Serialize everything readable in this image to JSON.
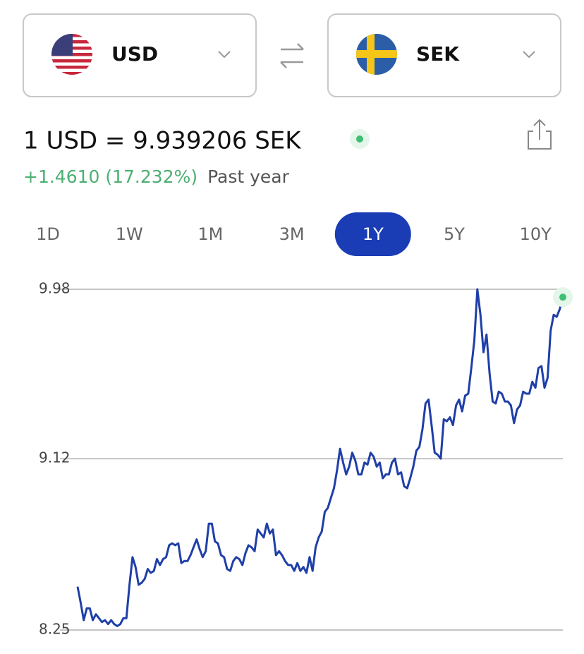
{
  "from_currency": "USD",
  "to_currency": "SEK",
  "rate": "1 USD = 9.939206 SEK",
  "change": "+1.4610 (17.232%)",
  "period": "Past year",
  "ranges": [
    "1D",
    "1W",
    "1M",
    "3M",
    "1Y",
    "5Y",
    "10Y"
  ],
  "selected_range": 4,
  "chart_data": {
    "type": "line",
    "color": "#1f3fa8",
    "end_color": "#3fbf74",
    "grid": true,
    "ylim": [
      8.25,
      9.98
    ],
    "yticks": [
      8.25,
      9.12,
      9.98
    ],
    "values": [
      8.47,
      8.39,
      8.3,
      8.36,
      8.36,
      8.3,
      8.33,
      8.31,
      8.29,
      8.3,
      8.28,
      8.3,
      8.28,
      8.27,
      8.28,
      8.31,
      8.31,
      8.48,
      8.62,
      8.57,
      8.48,
      8.49,
      8.51,
      8.56,
      8.54,
      8.55,
      8.61,
      8.58,
      8.61,
      8.62,
      8.68,
      8.69,
      8.68,
      8.69,
      8.59,
      8.6,
      8.6,
      8.63,
      8.67,
      8.71,
      8.66,
      8.62,
      8.65,
      8.79,
      8.79,
      8.7,
      8.69,
      8.63,
      8.62,
      8.56,
      8.55,
      8.6,
      8.62,
      8.61,
      8.58,
      8.64,
      8.68,
      8.67,
      8.65,
      8.76,
      8.74,
      8.72,
      8.79,
      8.74,
      8.76,
      8.63,
      8.65,
      8.63,
      8.6,
      8.58,
      8.58,
      8.55,
      8.59,
      8.55,
      8.57,
      8.54,
      8.62,
      8.55,
      8.67,
      8.72,
      8.75,
      8.85,
      8.87,
      8.92,
      8.97,
      9.06,
      9.17,
      9.1,
      9.04,
      9.08,
      9.15,
      9.11,
      9.04,
      9.04,
      9.1,
      9.09,
      9.15,
      9.13,
      9.08,
      9.1,
      9.02,
      9.04,
      9.04,
      9.1,
      9.12,
      9.04,
      9.05,
      8.98,
      8.97,
      9.02,
      9.08,
      9.16,
      9.18,
      9.27,
      9.4,
      9.42,
      9.29,
      9.15,
      9.14,
      9.12,
      9.32,
      9.31,
      9.33,
      9.29,
      9.39,
      9.42,
      9.36,
      9.44,
      9.45,
      9.58,
      9.72,
      9.98,
      9.85,
      9.66,
      9.75,
      9.55,
      9.41,
      9.4,
      9.46,
      9.45,
      9.41,
      9.41,
      9.39,
      9.3,
      9.37,
      9.39,
      9.46,
      9.45,
      9.45,
      9.51,
      9.48,
      9.58,
      9.59,
      9.48,
      9.53,
      9.77,
      9.85,
      9.84,
      9.88,
      9.94
    ]
  }
}
